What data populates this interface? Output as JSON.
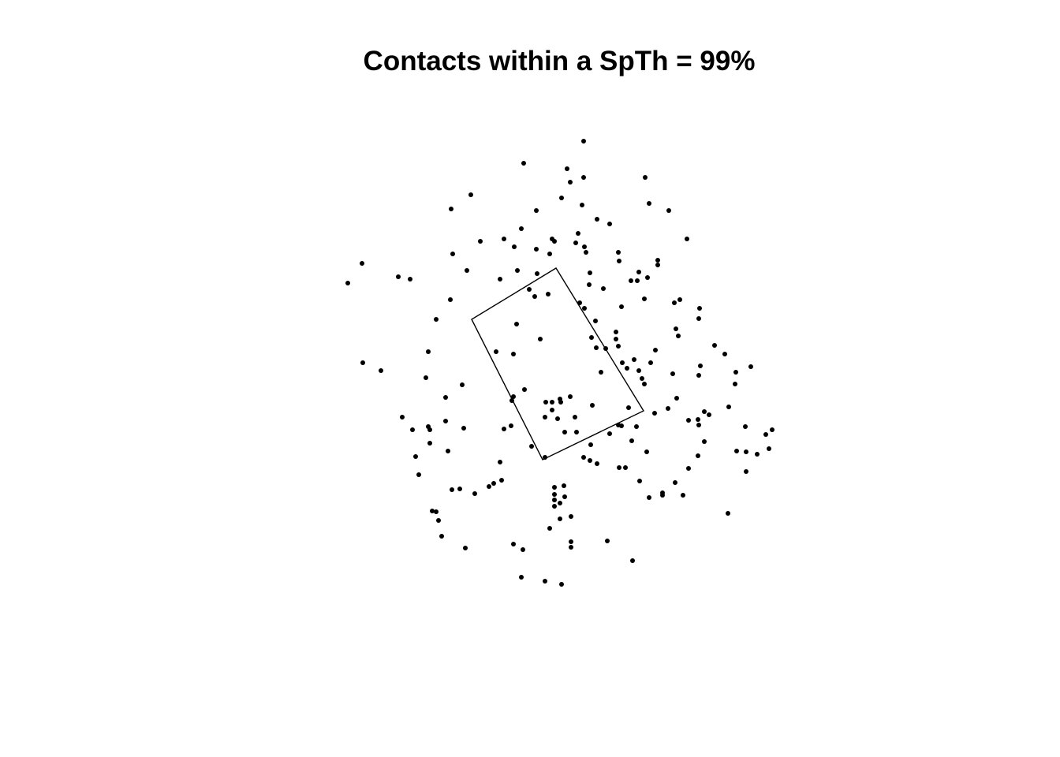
{
  "chart_data": {
    "type": "scatter",
    "title": "Contacts within a SpTh = 99%",
    "xlabel": "",
    "ylabel": "",
    "grid": false,
    "axes_visible": false,
    "point_color": "#000000",
    "polygon": [
      [
        705,
        340
      ],
      [
        598,
        405
      ],
      [
        688,
        583
      ],
      [
        816,
        521
      ]
    ],
    "points": [
      [
        740,
        179
      ],
      [
        664,
        207
      ],
      [
        719,
        214
      ],
      [
        740,
        225
      ],
      [
        723,
        231
      ],
      [
        818,
        225
      ],
      [
        597,
        247
      ],
      [
        712,
        251
      ],
      [
        572,
        265
      ],
      [
        680,
        267
      ],
      [
        738,
        260
      ],
      [
        823,
        258
      ],
      [
        848,
        267
      ],
      [
        757,
        278
      ],
      [
        773,
        284
      ],
      [
        661,
        290
      ],
      [
        733,
        296
      ],
      [
        639,
        303
      ],
      [
        609,
        306
      ],
      [
        652,
        313
      ],
      [
        700,
        303
      ],
      [
        703,
        306
      ],
      [
        730,
        308
      ],
      [
        871,
        303
      ],
      [
        680,
        316
      ],
      [
        697,
        322
      ],
      [
        741,
        313
      ],
      [
        743,
        320
      ],
      [
        574,
        322
      ],
      [
        784,
        320
      ],
      [
        785,
        331
      ],
      [
        834,
        330
      ],
      [
        834,
        336
      ],
      [
        459,
        334
      ],
      [
        592,
        343
      ],
      [
        656,
        343
      ],
      [
        681,
        347
      ],
      [
        748,
        346
      ],
      [
        765,
        366
      ],
      [
        810,
        345
      ],
      [
        800,
        356
      ],
      [
        808,
        356
      ],
      [
        821,
        352
      ],
      [
        505,
        351
      ],
      [
        520,
        354
      ],
      [
        634,
        354
      ],
      [
        441,
        359
      ],
      [
        671,
        367
      ],
      [
        678,
        376
      ],
      [
        695,
        373
      ],
      [
        747,
        361
      ],
      [
        571,
        380
      ],
      [
        735,
        384
      ],
      [
        741,
        391
      ],
      [
        788,
        389
      ],
      [
        817,
        379
      ],
      [
        855,
        384
      ],
      [
        862,
        380
      ],
      [
        887,
        391
      ],
      [
        886,
        404
      ],
      [
        553,
        405
      ],
      [
        655,
        411
      ],
      [
        755,
        407
      ],
      [
        781,
        421
      ],
      [
        857,
        417
      ],
      [
        860,
        426
      ],
      [
        685,
        430
      ],
      [
        750,
        428
      ],
      [
        756,
        441
      ],
      [
        768,
        442
      ],
      [
        781,
        430
      ],
      [
        784,
        439
      ],
      [
        831,
        444
      ],
      [
        906,
        438
      ],
      [
        919,
        449
      ],
      [
        543,
        446
      ],
      [
        629,
        446
      ],
      [
        651,
        449
      ],
      [
        789,
        460
      ],
      [
        804,
        456
      ],
      [
        460,
        460
      ],
      [
        483,
        470
      ],
      [
        762,
        472
      ],
      [
        795,
        467
      ],
      [
        825,
        460
      ],
      [
        810,
        470
      ],
      [
        888,
        464
      ],
      [
        933,
        472
      ],
      [
        952,
        465
      ],
      [
        540,
        479
      ],
      [
        586,
        488
      ],
      [
        665,
        494
      ],
      [
        814,
        480
      ],
      [
        817,
        487
      ],
      [
        853,
        474
      ],
      [
        886,
        476
      ],
      [
        932,
        487
      ],
      [
        565,
        504
      ],
      [
        651,
        503
      ],
      [
        649,
        508
      ],
      [
        692,
        510
      ],
      [
        700,
        510
      ],
      [
        710,
        506
      ],
      [
        711,
        510
      ],
      [
        723,
        503
      ],
      [
        700,
        520
      ],
      [
        751,
        514
      ],
      [
        797,
        517
      ],
      [
        858,
        505
      ],
      [
        924,
        516
      ],
      [
        510,
        529
      ],
      [
        565,
        534
      ],
      [
        691,
        529
      ],
      [
        707,
        531
      ],
      [
        729,
        529
      ],
      [
        830,
        524
      ],
      [
        847,
        518
      ],
      [
        873,
        533
      ],
      [
        885,
        532
      ],
      [
        893,
        522
      ],
      [
        899,
        526
      ],
      [
        543,
        541
      ],
      [
        545,
        545
      ],
      [
        523,
        545
      ],
      [
        588,
        543
      ],
      [
        648,
        540
      ],
      [
        639,
        544
      ],
      [
        716,
        548
      ],
      [
        731,
        548
      ],
      [
        788,
        540
      ],
      [
        784,
        539
      ],
      [
        807,
        541
      ],
      [
        886,
        539
      ],
      [
        945,
        541
      ],
      [
        979,
        545
      ],
      [
        971,
        551
      ],
      [
        545,
        562
      ],
      [
        674,
        566
      ],
      [
        749,
        564
      ],
      [
        773,
        550
      ],
      [
        801,
        559
      ],
      [
        893,
        560
      ],
      [
        568,
        572
      ],
      [
        527,
        579
      ],
      [
        740,
        580
      ],
      [
        748,
        584
      ],
      [
        691,
        580
      ],
      [
        820,
        573
      ],
      [
        885,
        578
      ],
      [
        934,
        572
      ],
      [
        946,
        573
      ],
      [
        960,
        576
      ],
      [
        975,
        569
      ],
      [
        634,
        586
      ],
      [
        757,
        588
      ],
      [
        785,
        593
      ],
      [
        793,
        593
      ],
      [
        873,
        594
      ],
      [
        946,
        598
      ],
      [
        531,
        602
      ],
      [
        636,
        609
      ],
      [
        626,
        613
      ],
      [
        620,
        617
      ],
      [
        811,
        610
      ],
      [
        856,
        612
      ],
      [
        573,
        621
      ],
      [
        583,
        620
      ],
      [
        602,
        626
      ],
      [
        703,
        618
      ],
      [
        715,
        616
      ],
      [
        703,
        627
      ],
      [
        716,
        630
      ],
      [
        703,
        634
      ],
      [
        823,
        631
      ],
      [
        840,
        625
      ],
      [
        840,
        628
      ],
      [
        866,
        628
      ],
      [
        703,
        642
      ],
      [
        710,
        638
      ],
      [
        548,
        648
      ],
      [
        553,
        649
      ],
      [
        556,
        660
      ],
      [
        710,
        658
      ],
      [
        724,
        655
      ],
      [
        923,
        651
      ],
      [
        697,
        670
      ],
      [
        560,
        680
      ],
      [
        651,
        690
      ],
      [
        663,
        697
      ],
      [
        724,
        687
      ],
      [
        724,
        694
      ],
      [
        770,
        686
      ],
      [
        590,
        695
      ],
      [
        802,
        711
      ],
      [
        661,
        732
      ],
      [
        691,
        737
      ],
      [
        712,
        741
      ]
    ]
  }
}
